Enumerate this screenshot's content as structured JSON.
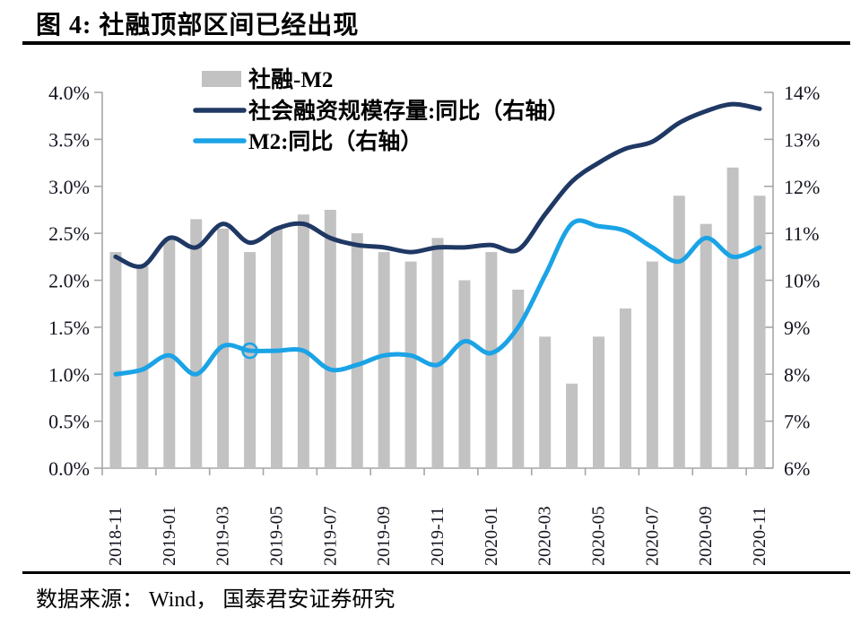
{
  "figure": {
    "title": "图 4: 社融顶部区间已经出现",
    "source": "数据来源： Wind， 国泰君安证券研究"
  },
  "colors": {
    "bar": "#c2c2c2",
    "sofr_line": "#1f3864",
    "m2_line": "#1ba3e6",
    "axis": "#a6a6a6",
    "tick_label": "#13131f",
    "legend_text": "#000000",
    "rule": "#000000"
  },
  "chart_data": {
    "type": "bar+line dual-axis combo",
    "categories": [
      "2018-11",
      "2018-12",
      "2019-01",
      "2019-02",
      "2019-03",
      "2019-04",
      "2019-05",
      "2019-06",
      "2019-07",
      "2019-08",
      "2019-09",
      "2019-10",
      "2019-11",
      "2019-12",
      "2020-01",
      "2020-02",
      "2020-03",
      "2020-04",
      "2020-05",
      "2020-06",
      "2020-07",
      "2020-08",
      "2020-09",
      "2020-10",
      "2020-11"
    ],
    "x_label_every": 2,
    "left_axis": {
      "title": "",
      "min": 0,
      "max": 4,
      "values": [
        0,
        0.5,
        1,
        1.5,
        2,
        2.5,
        3,
        3.5,
        4
      ],
      "labels": [
        "0.0%",
        "0.5%",
        "1.0%",
        "1.5%",
        "2.0%",
        "2.5%",
        "3.0%",
        "3.5%",
        "4.0%"
      ]
    },
    "right_axis": {
      "title": "",
      "min": 6,
      "max": 14,
      "values": [
        6,
        7,
        8,
        9,
        10,
        11,
        12,
        13,
        14
      ],
      "labels": [
        "6%",
        "7%",
        "8%",
        "9%",
        "10%",
        "11%",
        "12%",
        "13%",
        "14%"
      ]
    },
    "series": [
      {
        "name": "社融-M2",
        "type": "bar",
        "axis": "left",
        "color_key": "bar",
        "values": [
          2.3,
          2.15,
          2.45,
          2.65,
          2.55,
          2.3,
          2.55,
          2.7,
          2.75,
          2.5,
          2.3,
          2.2,
          2.45,
          2.0,
          2.3,
          1.9,
          1.4,
          0.9,
          1.4,
          1.7,
          2.2,
          2.9,
          2.6,
          3.2,
          2.9
        ]
      },
      {
        "name": "社会融资规模存量:同比（右轴）",
        "type": "line",
        "axis": "right",
        "color_key": "sofr_line",
        "values": [
          10.5,
          10.3,
          10.9,
          10.7,
          11.2,
          10.8,
          11.1,
          11.2,
          10.9,
          10.75,
          10.7,
          10.6,
          10.7,
          10.7,
          10.75,
          10.65,
          11.4,
          12.1,
          12.5,
          12.8,
          12.95,
          13.35,
          13.6,
          13.75,
          13.65
        ]
      },
      {
        "name": "M2:同比（右轴）",
        "type": "line",
        "axis": "right",
        "color_key": "m2_line",
        "marker_index": 5,
        "values": [
          8.0,
          8.1,
          8.4,
          8.0,
          8.6,
          8.5,
          8.5,
          8.5,
          8.1,
          8.2,
          8.4,
          8.4,
          8.2,
          8.7,
          8.45,
          9.0,
          10.1,
          11.2,
          11.15,
          11.05,
          10.7,
          10.4,
          10.9,
          10.5,
          10.7
        ]
      }
    ],
    "legend_position": "top-inside-left",
    "grid": false
  }
}
